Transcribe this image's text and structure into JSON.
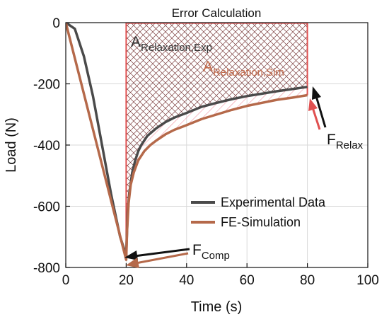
{
  "chart_data": {
    "type": "line",
    "title": "Error Calculation",
    "xlabel": "Time (s)",
    "ylabel": "Load (N)",
    "xlim": [
      0,
      100
    ],
    "ylim": [
      -800,
      0
    ],
    "x_ticks": [
      "0",
      "20",
      "40",
      "60",
      "80",
      "100"
    ],
    "y_ticks": [
      "0",
      "-200",
      "-400",
      "-600",
      "-800"
    ],
    "grid": true,
    "legend_position": "bottom-right",
    "series": [
      {
        "name": "Experimental Data",
        "color": "#4a4a4a",
        "x": [
          0,
          3,
          6,
          9,
          12,
          15,
          18,
          20,
          20.5,
          21,
          22,
          23,
          24,
          25,
          27,
          30,
          33,
          36,
          40,
          45,
          50,
          55,
          60,
          65,
          70,
          75,
          80
        ],
        "y": [
          0,
          -20,
          -110,
          -240,
          -400,
          -560,
          -700,
          -760,
          -620,
          -560,
          -490,
          -450,
          -420,
          -400,
          -370,
          -345,
          -325,
          -310,
          -295,
          -275,
          -262,
          -250,
          -240,
          -232,
          -224,
          -217,
          -210
        ]
      },
      {
        "name": "FE-Simulation",
        "color": "#b5694a",
        "x": [
          0,
          20,
          20.3,
          20.8,
          21.5,
          22.5,
          24,
          26,
          28,
          30,
          33,
          36,
          40,
          45,
          50,
          55,
          60,
          65,
          70,
          75,
          80
        ],
        "y": [
          0,
          -775,
          -680,
          -590,
          -530,
          -490,
          -450,
          -420,
          -400,
          -385,
          -365,
          -350,
          -335,
          -315,
          -300,
          -285,
          -272,
          -262,
          -252,
          -245,
          -237
        ]
      }
    ],
    "annotations": {
      "area_exp_main": "A",
      "area_exp_sub": "Relaxation,Exp",
      "area_sim_main": "A",
      "area_sim_sub": "Relaxation,Sim",
      "f_comp_main": "F",
      "f_comp_sub": "Comp",
      "f_relax_main": "F",
      "f_relax_sub": "Relax"
    }
  }
}
